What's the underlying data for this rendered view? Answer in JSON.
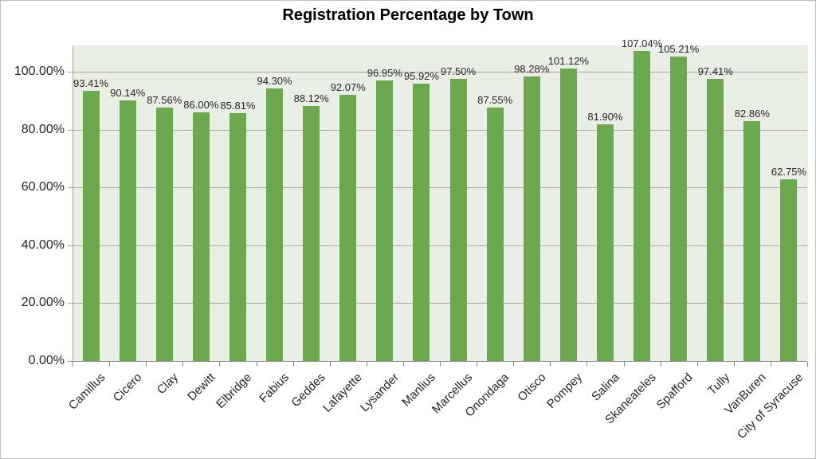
{
  "title": "Registration Percentage by Town",
  "colors": {
    "background": "#FFFFFF",
    "frame": "#BDBDBD",
    "title": "#000000",
    "text": "#262626",
    "bar": "#6CA850",
    "plot_background": "#EAEFE6",
    "gridline": "#A6A6A6",
    "axis_line": "#8C8C8C"
  },
  "chart_data": {
    "type": "bar",
    "title": "Registration Percentage by Town",
    "xlabel": "",
    "ylabel": "",
    "legend": "none",
    "grid": "horizontal",
    "ylim": [
      0,
      109
    ],
    "categories": [
      "Camillus",
      "Cicero",
      "Clay",
      "Dewitt",
      "Elbridge",
      "Fabius",
      "Geddes",
      "Lafayette",
      "Lysander",
      "Manlius",
      "Marcellus",
      "Onondaga",
      "Otisco",
      "Pompey",
      "Salina",
      "Skaneateles",
      "Spafford",
      "Tully",
      "VanBuren",
      "City of Syracuse"
    ],
    "values": [
      93.41,
      90.14,
      87.56,
      86.0,
      85.81,
      94.3,
      88.12,
      92.07,
      96.95,
      95.92,
      97.5,
      87.55,
      98.28,
      101.12,
      81.9,
      107.04,
      105.21,
      97.41,
      82.86,
      62.75
    ],
    "data_labels": [
      "93.41%",
      "90.14%",
      "87.56%",
      "86.00%",
      "85.81%",
      "94.30%",
      "88.12%",
      "92.07%",
      "96.95%",
      "95.92%",
      "97.50%",
      "87.55%",
      "98.28%",
      "101.12%",
      "81.90%",
      "107.04%",
      "105.21%",
      "97.41%",
      "82.86%",
      "62.75%"
    ],
    "y_tick_values": [
      0,
      20,
      40,
      60,
      80,
      100
    ],
    "y_tick_labels": [
      "0.00%",
      "20.00%",
      "40.00%",
      "60.00%",
      "80.00%",
      "100.00%"
    ]
  }
}
